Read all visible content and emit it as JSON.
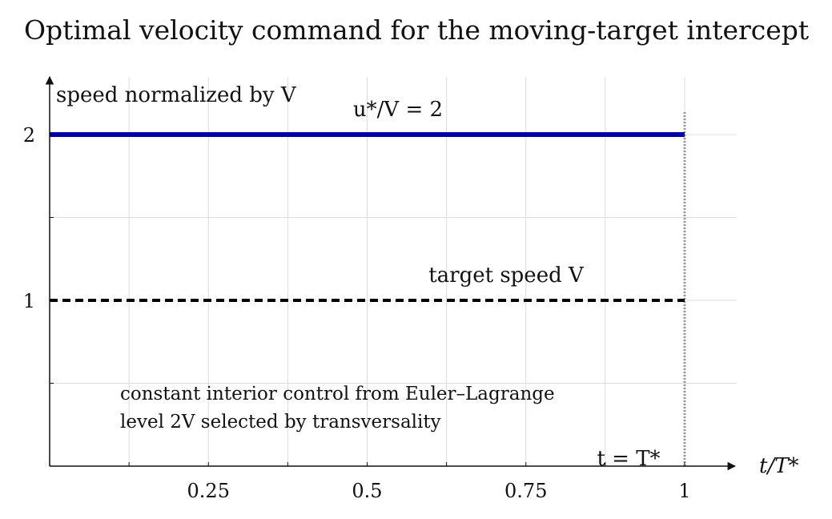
{
  "chart_data": {
    "type": "line",
    "title": "Optimal velocity command for the moving-target intercept",
    "ylabel": "speed normalized by V",
    "xlabel": "t/T*",
    "xlim": [
      0,
      1.08
    ],
    "ylim": [
      0,
      2.35
    ],
    "x_ticks": [
      0.25,
      0.5,
      0.75,
      1
    ],
    "x_tick_labels": [
      "0.25",
      "0.5",
      "0.75",
      "1"
    ],
    "y_ticks": [
      1,
      2
    ],
    "y_tick_labels": [
      "1",
      "2"
    ],
    "grid": true,
    "series": [
      {
        "name": "u*/V = 2",
        "x": [
          0,
          1
        ],
        "y": [
          2,
          2
        ],
        "color": "#0000aa",
        "style": "solid"
      },
      {
        "name": "target speed V",
        "x": [
          0,
          1
        ],
        "y": [
          1,
          1
        ],
        "color": "#000000",
        "style": "dashed"
      }
    ],
    "vline": {
      "x": 1,
      "label": "t = T*",
      "color": "#999999",
      "style": "dotted"
    },
    "annotations": [
      "constant interior control from Euler–Lagrange",
      "level 2V selected by transversality"
    ]
  }
}
